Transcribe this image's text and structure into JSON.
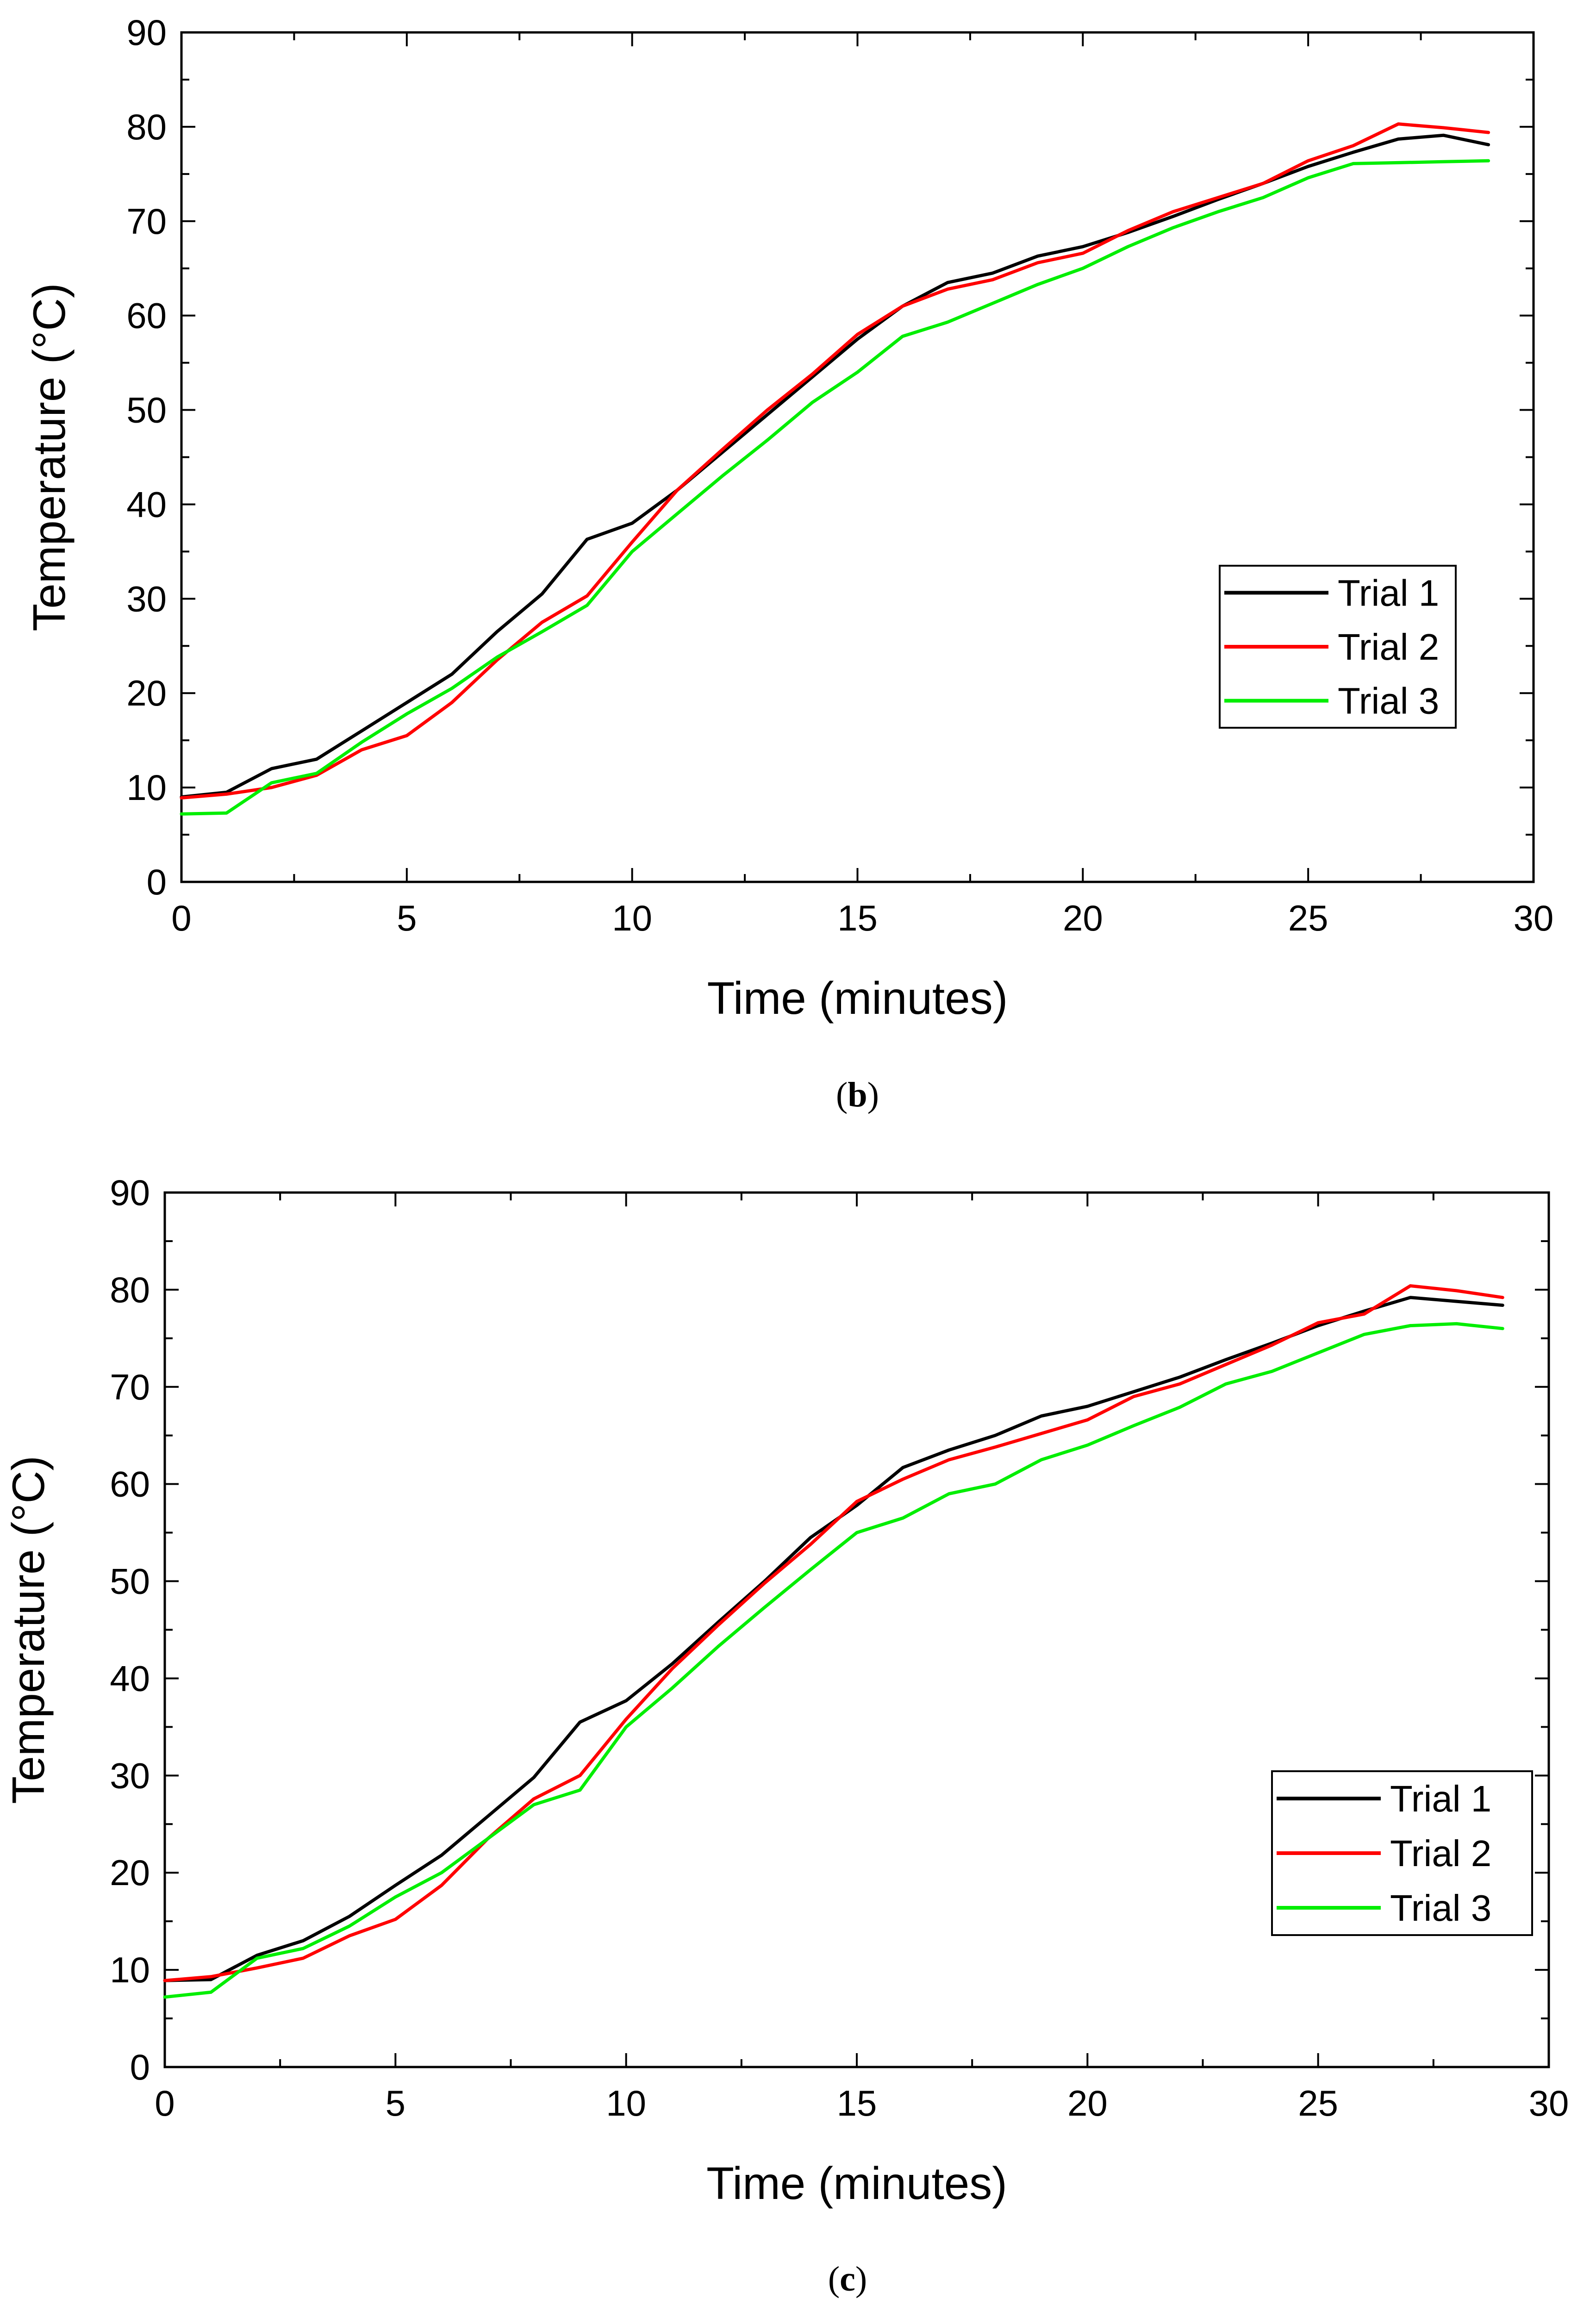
{
  "figure": {
    "panels": [
      {
        "caption_open": "(",
        "caption_letter": "b",
        "caption_close": ")"
      },
      {
        "caption_open": "(",
        "caption_letter": "c",
        "caption_close": ")"
      }
    ]
  },
  "chart_data": [
    {
      "type": "line",
      "title": "",
      "xlabel": "Time (minutes)",
      "ylabel": "Temperature (°C)",
      "xlim": [
        0,
        30
      ],
      "ylim": [
        0,
        90
      ],
      "xticks": [
        0,
        5,
        10,
        15,
        20,
        25,
        30
      ],
      "yticks": [
        0,
        10,
        20,
        30,
        40,
        50,
        60,
        70,
        80,
        90
      ],
      "grid": false,
      "legend_position": "center-right",
      "x": [
        0,
        1,
        2,
        3,
        4,
        5,
        6,
        7,
        8,
        9,
        10,
        11,
        12,
        13,
        14,
        15,
        16,
        17,
        18,
        19,
        20,
        21,
        22,
        23,
        24,
        25,
        26,
        27,
        28,
        29
      ],
      "series": [
        {
          "name": "Trial 1",
          "color": "#000000",
          "values": [
            9.0,
            9.5,
            12.0,
            13.0,
            16.0,
            19.0,
            22.0,
            26.5,
            30.5,
            36.3,
            38.0,
            41.5,
            45.5,
            49.5,
            53.5,
            57.5,
            61.0,
            63.5,
            64.5,
            66.3,
            67.3,
            68.8,
            70.5,
            72.3,
            74.0,
            75.8,
            77.3,
            78.7,
            79.1,
            78.1
          ]
        },
        {
          "name": "Trial 2",
          "color": "#ff0000",
          "values": [
            8.9,
            9.3,
            10.0,
            11.3,
            14.0,
            15.5,
            19.0,
            23.5,
            27.5,
            30.3,
            36.0,
            41.5,
            45.8,
            50.0,
            53.8,
            58.0,
            61.0,
            62.8,
            63.8,
            65.6,
            66.6,
            69.0,
            71.0,
            72.5,
            74.0,
            76.4,
            78.0,
            80.3,
            79.9,
            79.4
          ]
        },
        {
          "name": "Trial 3",
          "color": "#00ee00",
          "values": [
            7.2,
            7.3,
            10.5,
            11.5,
            14.8,
            17.8,
            20.5,
            23.8,
            26.5,
            29.3,
            35.0,
            39.0,
            43.0,
            46.8,
            50.8,
            54.0,
            57.8,
            59.3,
            61.3,
            63.3,
            65.0,
            67.3,
            69.3,
            71.0,
            72.5,
            74.6,
            76.1,
            76.2,
            76.3,
            76.4
          ]
        }
      ]
    },
    {
      "type": "line",
      "title": "",
      "xlabel": "Time (minutes)",
      "ylabel": "Temperature (°C)",
      "xlim": [
        0,
        30
      ],
      "ylim": [
        0,
        90
      ],
      "xticks": [
        0,
        5,
        10,
        15,
        20,
        25,
        30
      ],
      "yticks": [
        0,
        10,
        20,
        30,
        40,
        50,
        60,
        70,
        80,
        90
      ],
      "grid": false,
      "legend_position": "bottom-right",
      "x": [
        0,
        1,
        2,
        3,
        4,
        5,
        6,
        7,
        8,
        9,
        10,
        11,
        12,
        13,
        14,
        15,
        16,
        17,
        18,
        19,
        20,
        21,
        22,
        23,
        24,
        25,
        26,
        27,
        28,
        29
      ],
      "series": [
        {
          "name": "Trial 1",
          "color": "#000000",
          "values": [
            8.9,
            9.0,
            11.5,
            13.0,
            15.5,
            18.7,
            21.8,
            25.8,
            29.8,
            35.5,
            37.7,
            41.5,
            45.8,
            50.0,
            54.5,
            57.8,
            61.7,
            63.5,
            65.0,
            67.0,
            68.0,
            69.5,
            71.0,
            72.8,
            74.5,
            76.3,
            77.8,
            79.2,
            78.8,
            78.4
          ]
        },
        {
          "name": "Trial 2",
          "color": "#ff0000",
          "values": [
            8.9,
            9.3,
            10.2,
            11.2,
            13.5,
            15.2,
            18.7,
            23.5,
            27.6,
            30.0,
            35.8,
            41.0,
            45.5,
            49.8,
            53.8,
            58.2,
            60.5,
            62.5,
            63.8,
            65.2,
            66.6,
            69.0,
            70.3,
            72.3,
            74.3,
            76.6,
            77.5,
            80.4,
            79.9,
            79.2
          ]
        },
        {
          "name": "Trial 3",
          "color": "#00ee00",
          "values": [
            7.2,
            7.7,
            11.2,
            12.2,
            14.5,
            17.5,
            20.0,
            23.5,
            27.0,
            28.5,
            35.0,
            39.0,
            43.3,
            47.3,
            51.2,
            55.0,
            56.5,
            59.0,
            60.0,
            62.5,
            64.0,
            66.0,
            67.9,
            70.3,
            71.6,
            73.5,
            75.4,
            76.3,
            76.5,
            76.0
          ]
        }
      ]
    }
  ]
}
